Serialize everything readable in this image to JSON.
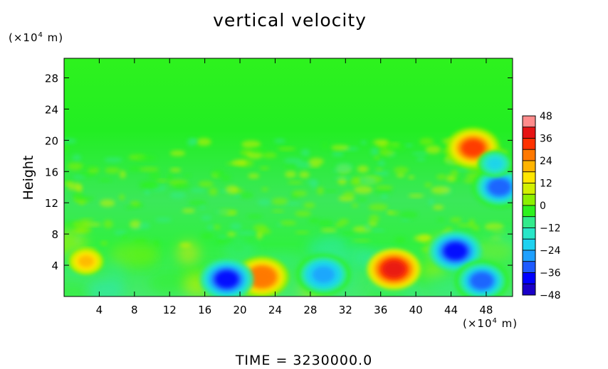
{
  "chart_data": {
    "type": "heatmap",
    "title": "vertical velocity",
    "ylabel": "Height",
    "xlabel": "",
    "x_unit_label": "(×10",
    "x_unit_exp": "4",
    "x_unit_suffix": " m)",
    "y_unit_label": "(×10",
    "y_unit_exp": "4",
    "y_unit_suffix": " m)",
    "xlim": [
      0,
      51
    ],
    "ylim": [
      0,
      30.5
    ],
    "x_ticks": [
      "4",
      "8",
      "12",
      "16",
      "20",
      "24",
      "28",
      "32",
      "36",
      "40",
      "44",
      "48"
    ],
    "x_tick_values": [
      4,
      8,
      12,
      16,
      20,
      24,
      28,
      32,
      36,
      40,
      44,
      48
    ],
    "y_ticks": [
      "4",
      "8",
      "12",
      "16",
      "20",
      "24",
      "28"
    ],
    "y_tick_values": [
      4,
      8,
      12,
      16,
      20,
      24,
      28
    ],
    "colorbar": {
      "min": -48,
      "max": 48,
      "ticks": [
        "48",
        "36",
        "24",
        "12",
        "0",
        "−12",
        "−24",
        "−36",
        "−48"
      ],
      "tick_values": [
        48,
        36,
        24,
        12,
        0,
        -12,
        -24,
        -36,
        -48
      ]
    },
    "features": [
      {
        "x": 37.5,
        "y": 3.5,
        "value": 42
      },
      {
        "x": 22.5,
        "y": 2.5,
        "value": 30
      },
      {
        "x": 2.5,
        "y": 4.5,
        "value": 20
      },
      {
        "x": 18.5,
        "y": 2.2,
        "value": -36
      },
      {
        "x": 29.5,
        "y": 2.8,
        "value": -28
      },
      {
        "x": 44.5,
        "y": 5.8,
        "value": -40
      },
      {
        "x": 47.5,
        "y": 2.0,
        "value": -30
      },
      {
        "x": 46.5,
        "y": 19.0,
        "value": 36
      },
      {
        "x": 49.5,
        "y": 14.0,
        "value": -34
      },
      {
        "x": 49.0,
        "y": 17.0,
        "value": -18
      }
    ],
    "footer": "TIME  =  3230000.0"
  }
}
